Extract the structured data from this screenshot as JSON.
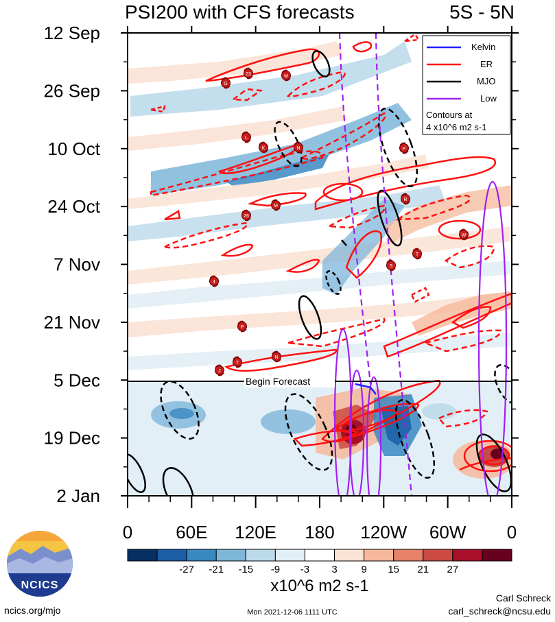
{
  "chart_data": {
    "type": "heatmap",
    "title": "PSI200 with CFS forecasts",
    "title_right": "5S - 5N",
    "y_tick_labels": [
      "12 Sep",
      "26 Sep",
      "10 Oct",
      "24 Oct",
      "7 Nov",
      "21 Nov",
      "5 Dec",
      "19 Dec",
      "2 Jan"
    ],
    "x_tick_labels": [
      "0",
      "60E",
      "120E",
      "180",
      "120W",
      "60W",
      "0"
    ],
    "x_range_deg": [
      0,
      360
    ],
    "forecast_start_label": "Begin Forecast",
    "forecast_start_date": "5 Dec",
    "colorbar": {
      "colors": [
        "#053061",
        "#1b5ea6",
        "#3a88c2",
        "#7db6d9",
        "#bcdaea",
        "#e3eff6",
        "#ffffff",
        "#fbe3d6",
        "#f6b99b",
        "#e58268",
        "#cb4a42",
        "#a8102a",
        "#67001f"
      ],
      "tick_labels": [
        "-27",
        "-21",
        "-15",
        "-9",
        "-3",
        "3",
        "9",
        "15",
        "21",
        "27"
      ],
      "units": "x10^6 m2 s-1"
    },
    "legend": {
      "placement": "top-right",
      "items": [
        {
          "label": "Kelvin",
          "color": "#2020ff"
        },
        {
          "label": "ER",
          "color": "#ff1010"
        },
        {
          "label": "MJO",
          "color": "#000000"
        },
        {
          "label": "Low",
          "color": "#a020f0"
        }
      ],
      "note_line1": "Contours at",
      "note_line2": "4 x10^6 m2 s-1"
    },
    "storm_markers": [
      "G",
      "23",
      "M",
      "L",
      "K",
      "N",
      "P",
      "R",
      "M",
      "26",
      "W",
      "T",
      "S",
      "4",
      "P",
      "J",
      "T",
      "N"
    ]
  },
  "footer": {
    "logo_text": "NCICS",
    "url": "ncics.org/mjo",
    "timestamp": "Mon 2021-12-06 1111 UTC",
    "author": "Carl Schreck",
    "email": "carl_schreck@ncsu.edu"
  }
}
